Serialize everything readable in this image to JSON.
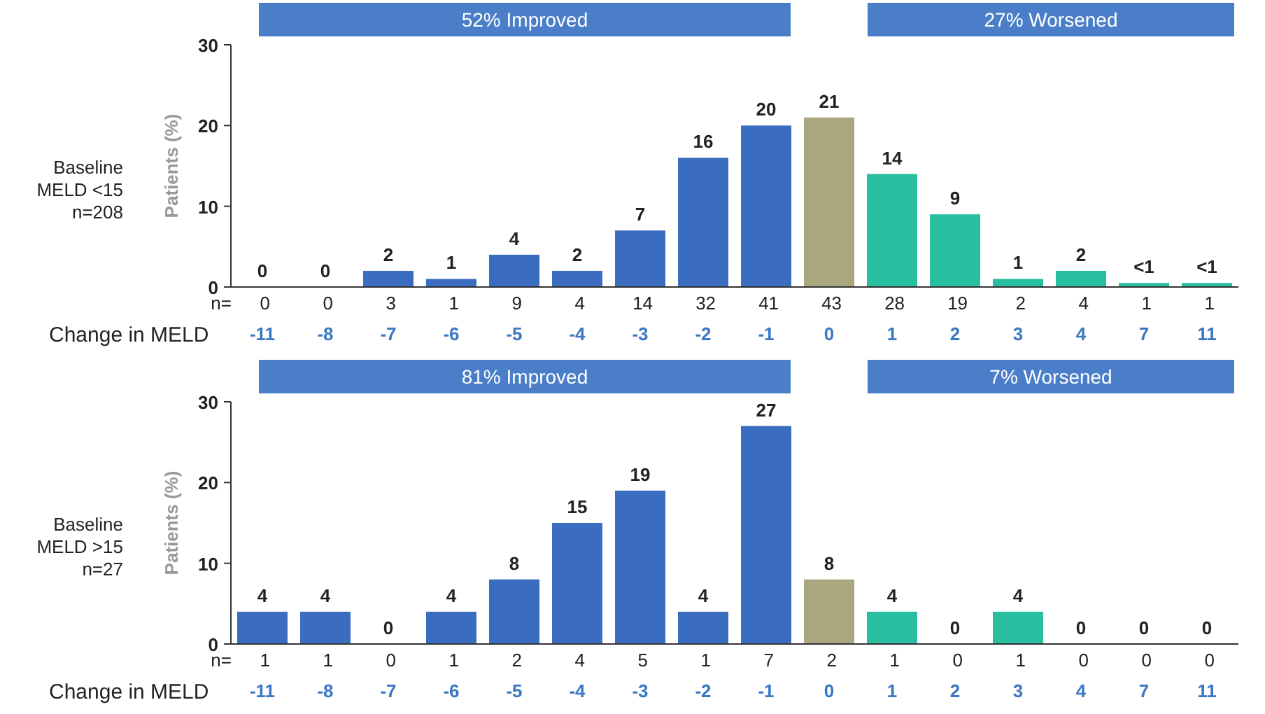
{
  "chart_data": [
    {
      "type": "bar",
      "title": "Baseline MELD <15 n=208",
      "ylabel": "Patients (%)",
      "xlabel": "Change in MELD",
      "categories": [
        "-11",
        "-8",
        "-7",
        "-6",
        "-5",
        "-4",
        "-3",
        "-2",
        "-1",
        "0",
        "1",
        "2",
        "3",
        "4",
        "7",
        "11"
      ],
      "values": [
        0,
        0,
        2,
        1,
        4,
        2,
        7,
        16,
        20,
        21,
        14,
        9,
        1,
        2,
        0.5,
        0.5
      ],
      "value_labels": [
        "0",
        "0",
        "2",
        "1",
        "4",
        "2",
        "7",
        "16",
        "20",
        "21",
        "14",
        "9",
        "1",
        "2",
        "<1",
        "<1"
      ],
      "colors": [
        "#3a6cc0",
        "#3a6cc0",
        "#3a6cc0",
        "#3a6cc0",
        "#3a6cc0",
        "#3a6cc0",
        "#3a6cc0",
        "#3a6cc0",
        "#3a6cc0",
        "#aaa67e",
        "#27bfa0",
        "#27bfa0",
        "#27bfa0",
        "#27bfa0",
        "#27bfa0",
        "#27bfa0"
      ],
      "ylim": [
        0,
        30
      ],
      "yticks": [
        0,
        10,
        20,
        30
      ],
      "annotations": [
        "52% Improved",
        "27% Worsened",
        "n= 0 0 3 1 9 4 14 32 41 43 28 19 2 4 1 1"
      ]
    },
    {
      "type": "bar",
      "title": "Baseline MELD >15 n=27",
      "ylabel": "Patients (%)",
      "xlabel": "Change in MELD",
      "categories": [
        "-11",
        "-8",
        "-7",
        "-6",
        "-5",
        "-4",
        "-3",
        "-2",
        "-1",
        "0",
        "1",
        "2",
        "3",
        "4",
        "7",
        "11"
      ],
      "values": [
        4,
        4,
        0,
        4,
        8,
        15,
        19,
        4,
        27,
        8,
        4,
        0,
        4,
        0,
        0,
        0
      ],
      "data_labels": true,
      "colors": [
        "#3a6cc0",
        "#3a6cc0",
        "#3a6cc0",
        "#3a6cc0",
        "#3a6cc0",
        "#3a6cc0",
        "#3a6cc0",
        "#3a6cc0",
        "#3a6cc0",
        "#aaa67e",
        "#27bfa0",
        "#27bfa0",
        "#27bfa0",
        "#27bfa0",
        "#27bfa0",
        "#27bfa0"
      ],
      "ylim": [
        0,
        30
      ],
      "yticks": [
        0,
        10,
        20,
        30
      ],
      "annotations": [
        "81% Improved",
        "7% Worsened",
        "n= 1 1 0 1 2 4 5 1 7 2 1 0 1 0 0 0"
      ]
    }
  ]
}
